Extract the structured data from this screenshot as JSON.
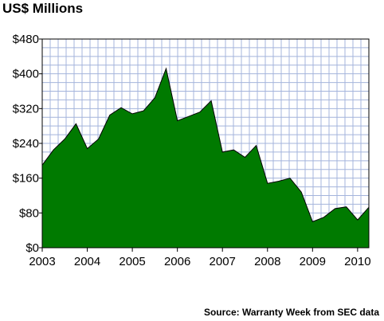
{
  "chart_data": {
    "type": "area",
    "title": "US$ Millions",
    "xlabel": "",
    "ylabel": "",
    "source": "Source: Warranty Week from SEC data",
    "ylim": [
      0,
      480
    ],
    "xlim": [
      2003,
      2010.25
    ],
    "grid": true,
    "legend": "none",
    "y_ticks": [
      {
        "value": 0,
        "label": "$0"
      },
      {
        "value": 80,
        "label": "$80"
      },
      {
        "value": 160,
        "label": "$160"
      },
      {
        "value": 240,
        "label": "$240"
      },
      {
        "value": 320,
        "label": "$320"
      },
      {
        "value": 400,
        "label": "$400"
      },
      {
        "value": 480,
        "label": "$480"
      }
    ],
    "x_ticks": [
      {
        "value": 2003,
        "label": "2003"
      },
      {
        "value": 2004,
        "label": "2004"
      },
      {
        "value": 2005,
        "label": "2005"
      },
      {
        "value": 2006,
        "label": "2006"
      },
      {
        "value": 2007,
        "label": "2007"
      },
      {
        "value": 2008,
        "label": "2008"
      },
      {
        "value": 2009,
        "label": "2009"
      },
      {
        "value": 2010,
        "label": "2010"
      }
    ],
    "x": [
      2003.0,
      2003.25,
      2003.5,
      2003.75,
      2004.0,
      2004.25,
      2004.5,
      2004.75,
      2005.0,
      2005.25,
      2005.5,
      2005.75,
      2006.0,
      2006.25,
      2006.5,
      2006.75,
      2007.0,
      2007.25,
      2007.5,
      2007.75,
      2008.0,
      2008.25,
      2008.5,
      2008.75,
      2009.0,
      2009.25,
      2009.5,
      2009.75,
      2010.0,
      2010.25
    ],
    "values": [
      190,
      225,
      250,
      285,
      228,
      250,
      305,
      322,
      308,
      315,
      345,
      412,
      292,
      302,
      312,
      338,
      220,
      225,
      208,
      235,
      148,
      153,
      160,
      128,
      60,
      70,
      90,
      94,
      64,
      93
    ],
    "colors": {
      "area_fill": "#007a00",
      "area_stroke": "#000000",
      "grid": "#a4b4dc",
      "plot_border": "#000000",
      "background": "#ffffff"
    }
  }
}
